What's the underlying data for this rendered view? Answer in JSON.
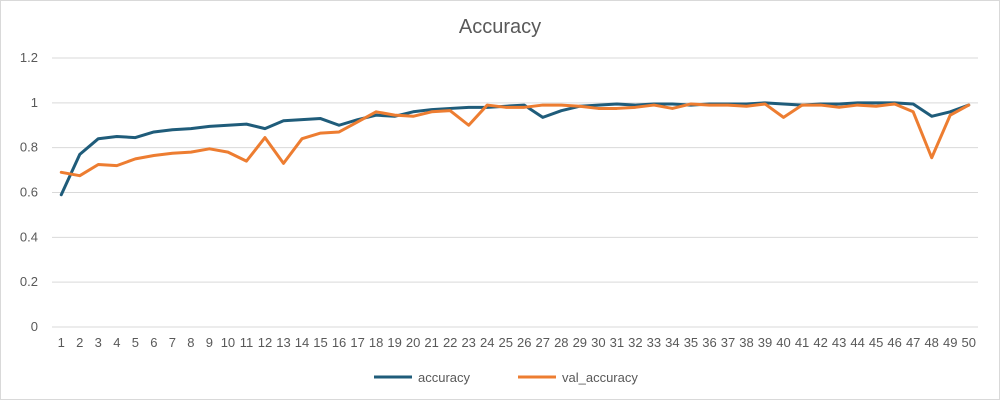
{
  "chart_data": {
    "type": "line",
    "title": "Accuracy",
    "xlabel": "",
    "ylabel": "",
    "x": [
      1,
      2,
      3,
      4,
      5,
      6,
      7,
      8,
      9,
      10,
      11,
      12,
      13,
      14,
      15,
      16,
      17,
      18,
      19,
      20,
      21,
      22,
      23,
      24,
      25,
      26,
      27,
      28,
      29,
      30,
      31,
      32,
      33,
      34,
      35,
      36,
      37,
      38,
      39,
      40,
      41,
      42,
      43,
      44,
      45,
      46,
      47,
      48,
      49,
      50
    ],
    "ylim": [
      0,
      1.2
    ],
    "yticks": [
      0,
      0.2,
      0.4,
      0.6,
      0.8,
      1,
      1.2
    ],
    "ytick_labels": [
      "0",
      "0.2",
      "0.4",
      "0.6",
      "0.8",
      "1",
      "1.2"
    ],
    "grid": "horizontal",
    "legend_position": "bottom",
    "series": [
      {
        "name": "accuracy",
        "color": "#1F5C7A",
        "values": [
          0.59,
          0.77,
          0.84,
          0.85,
          0.845,
          0.87,
          0.88,
          0.885,
          0.895,
          0.9,
          0.905,
          0.885,
          0.92,
          0.925,
          0.93,
          0.9,
          0.925,
          0.945,
          0.94,
          0.96,
          0.97,
          0.975,
          0.98,
          0.98,
          0.985,
          0.99,
          0.935,
          0.965,
          0.985,
          0.99,
          0.995,
          0.99,
          0.995,
          0.995,
          0.99,
          0.995,
          0.995,
          0.995,
          1.0,
          0.995,
          0.99,
          0.995,
          0.995,
          1.0,
          1.0,
          1.0,
          0.995,
          0.94,
          0.96,
          0.99
        ]
      },
      {
        "name": "val_accuracy",
        "color": "#ED7D31",
        "values": [
          0.69,
          0.675,
          0.725,
          0.72,
          0.75,
          0.765,
          0.775,
          0.78,
          0.795,
          0.78,
          0.74,
          0.845,
          0.73,
          0.84,
          0.865,
          0.87,
          0.915,
          0.96,
          0.945,
          0.94,
          0.96,
          0.965,
          0.9,
          0.99,
          0.98,
          0.98,
          0.99,
          0.99,
          0.985,
          0.975,
          0.975,
          0.98,
          0.99,
          0.975,
          0.995,
          0.99,
          0.99,
          0.985,
          0.995,
          0.935,
          0.99,
          0.99,
          0.98,
          0.99,
          0.985,
          0.995,
          0.96,
          0.755,
          0.945,
          0.99
        ]
      }
    ]
  }
}
